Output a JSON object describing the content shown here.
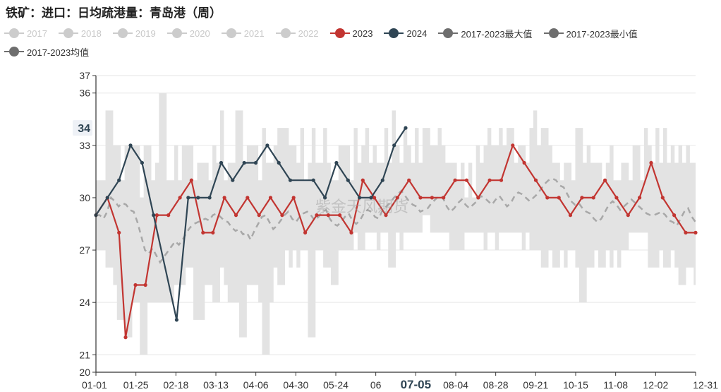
{
  "title": "铁矿：进口：日均疏港量：青岛港（周）",
  "watermark": "紫金天风期货",
  "chart_data": {
    "type": "line",
    "title": "铁矿：进口：日均疏港量：青岛港（周）",
    "xlabel": "",
    "ylabel": "",
    "ylim": [
      20,
      37
    ],
    "x_ticks": [
      "01-01",
      "01-25",
      "02-18",
      "03-13",
      "04-06",
      "04-30",
      "05-24",
      "06",
      "07-05",
      "08-04",
      "08-28",
      "09-21",
      "10-15",
      "11-08",
      "12-02",
      "12-31"
    ],
    "x_highlight": "07-05",
    "y_ticks": [
      20,
      21,
      24,
      27,
      30,
      33,
      36,
      37
    ],
    "y_highlight": "34",
    "grid": true,
    "legend_position": "top",
    "legend": [
      {
        "name": "2017",
        "color": "#cccccc",
        "active": false
      },
      {
        "name": "2018",
        "color": "#cccccc",
        "active": false
      },
      {
        "name": "2019",
        "color": "#cccccc",
        "active": false
      },
      {
        "name": "2020",
        "color": "#cccccc",
        "active": false
      },
      {
        "name": "2021",
        "color": "#cccccc",
        "active": false
      },
      {
        "name": "2022",
        "color": "#cccccc",
        "active": false
      },
      {
        "name": "2023",
        "color": "#c23531",
        "active": true
      },
      {
        "name": "2024",
        "color": "#2f4554",
        "active": true
      },
      {
        "name": "2017-2023最大值",
        "color": "#6e6e6e",
        "active": true
      },
      {
        "name": "2017-2023最小值",
        "color": "#6e6e6e",
        "active": true
      },
      {
        "name": "2017-2023均值",
        "color": "#6e6e6e",
        "active": true
      }
    ],
    "series": [
      {
        "name": "2023",
        "color": "#c23531",
        "x": [
          "01-01",
          "01-08",
          "01-15",
          "01-19",
          "01-25",
          "01-31",
          "02-07",
          "02-14",
          "02-21",
          "02-28",
          "03-07",
          "03-13",
          "03-20",
          "03-27",
          "04-03",
          "04-10",
          "04-17",
          "04-24",
          "05-01",
          "05-08",
          "05-15",
          "05-22",
          "05-29",
          "06-05",
          "06-12",
          "06-19",
          "06-26",
          "07-03",
          "07-10",
          "07-17",
          "07-24",
          "07-31",
          "08-07",
          "08-14",
          "08-21",
          "08-28",
          "09-04",
          "09-11",
          "09-18",
          "09-25",
          "10-02",
          "10-09",
          "10-16",
          "10-23",
          "10-30",
          "11-06",
          "11-13",
          "11-20",
          "11-27",
          "12-04",
          "12-11",
          "12-18",
          "12-25",
          "12-31"
        ],
        "values": [
          29,
          30,
          28,
          22,
          25,
          25,
          29,
          29,
          30,
          31,
          28,
          28,
          30,
          29,
          30,
          29,
          30,
          29,
          30,
          28,
          29,
          29,
          29,
          28,
          31,
          30,
          29,
          30,
          31,
          30,
          30,
          30,
          31,
          31,
          30,
          31,
          31,
          33,
          32,
          31,
          30,
          30,
          29,
          30,
          30,
          31,
          30,
          29,
          30,
          32,
          30,
          29,
          28,
          28
        ]
      },
      {
        "name": "2024",
        "color": "#2f4554",
        "x": [
          "01-01",
          "01-08",
          "01-15",
          "01-22",
          "01-29",
          "02-05",
          "02-19",
          "02-26",
          "03-04",
          "03-11",
          "03-18",
          "03-25",
          "04-01",
          "04-08",
          "04-15",
          "04-22",
          "04-29",
          "05-13",
          "05-20",
          "05-27",
          "06-03",
          "06-10",
          "06-17",
          "06-24",
          "07-01",
          "07-08"
        ],
        "values": [
          29,
          30,
          31,
          33,
          32,
          29,
          23,
          30,
          30,
          30,
          32,
          31,
          32,
          32,
          33,
          32,
          31,
          31,
          30,
          32,
          31,
          30,
          30,
          31,
          33,
          34
        ]
      },
      {
        "name": "2017-2023最大值",
        "color": "#e3e3e3",
        "values": [
          31,
          31,
          31,
          35,
          35,
          33,
          33,
          31,
          33,
          33,
          33,
          33,
          30,
          33,
          33,
          31,
          32,
          36,
          36,
          31,
          31,
          33,
          31,
          33,
          33,
          33,
          31,
          32,
          32,
          32,
          31,
          33,
          32,
          35,
          31,
          32,
          32,
          35,
          35,
          32,
          33,
          33,
          33,
          31,
          34,
          32,
          32,
          33,
          34,
          34,
          34,
          33,
          33,
          32,
          34,
          31,
          32,
          34,
          32,
          32,
          34,
          32,
          31,
          31,
          33,
          33,
          33,
          31,
          34,
          32,
          33,
          34,
          32,
          33,
          32,
          32,
          34,
          32,
          35,
          33,
          32,
          34,
          33,
          32,
          34,
          32,
          34,
          34,
          33,
          33,
          34,
          33,
          32,
          32,
          32,
          31,
          32,
          30,
          32,
          30,
          33,
          32,
          33,
          34,
          33,
          33,
          34,
          33,
          34,
          34,
          32,
          33,
          33,
          32,
          34,
          35,
          33,
          34,
          34,
          33,
          32,
          32,
          31,
          32,
          32,
          31,
          34,
          34,
          32,
          33,
          32,
          32,
          32,
          31,
          32,
          33,
          31,
          31,
          32,
          32,
          31,
          33,
          33,
          31,
          34,
          33,
          32,
          34,
          32,
          34,
          32,
          33,
          32,
          33,
          32,
          33,
          32,
          32
        ]
      },
      {
        "name": "2017-2023最小值",
        "color": "#e3e3e3",
        "values": [
          27,
          27,
          27,
          26,
          26,
          25,
          23,
          23,
          22,
          22,
          24,
          24,
          21,
          21,
          24,
          24,
          24,
          24,
          24,
          24,
          24,
          25,
          25,
          25,
          26,
          26,
          23,
          23,
          23,
          25,
          25,
          24,
          24,
          26,
          25,
          24,
          24,
          24,
          22,
          22,
          25,
          25,
          25,
          24,
          21,
          21,
          24,
          26,
          25,
          25,
          27,
          26,
          27,
          26,
          27,
          27,
          22,
          22,
          27,
          27,
          26,
          26,
          25,
          25,
          27,
          27,
          27,
          27,
          28,
          27,
          27,
          28,
          28,
          28,
          27,
          28,
          28,
          26,
          26,
          28,
          27,
          28,
          28,
          28,
          28,
          28,
          29,
          29,
          28,
          28,
          28,
          28,
          28,
          27,
          27,
          27,
          27,
          28,
          28,
          28,
          28,
          28,
          27,
          28,
          28,
          27,
          28,
          28,
          28,
          28,
          28,
          28,
          27,
          28,
          27,
          27,
          27,
          26,
          26,
          27,
          26,
          26,
          27,
          26,
          27,
          27,
          26,
          24,
          24,
          26,
          26,
          27,
          26,
          26,
          27,
          26,
          27,
          26,
          27,
          27,
          28,
          28,
          28,
          28,
          28,
          26,
          26,
          26,
          27,
          26,
          26,
          27,
          26,
          25,
          25,
          26,
          26,
          25
        ]
      },
      {
        "name": "2017-2023均值",
        "color": "#a8a8a8",
        "values": [
          29,
          29,
          28.8,
          29.2,
          30,
          29.8,
          29.5,
          29.7,
          29.6,
          29.3,
          29.2,
          28.6,
          27.8,
          27,
          26.8,
          27.1,
          26.7,
          26.3,
          26.6,
          26.9,
          27.2,
          27.5,
          27.3,
          27.6,
          28,
          28.3,
          28.5,
          28.6,
          28.7,
          28.8,
          28.7,
          29,
          29.1,
          28.9,
          28.7,
          28.6,
          28.3,
          28.1,
          28.2,
          27.9,
          28,
          27.6,
          28.1,
          28.5,
          28.9,
          29,
          28.6,
          28.2,
          28.4,
          28.7,
          29,
          29.2,
          28.8,
          28.6,
          28.9,
          29.1,
          29.2,
          29,
          28.7,
          28.9,
          29.2,
          29.3,
          28.8,
          28.5,
          28.4,
          28.6,
          28.9,
          29.1,
          28.7,
          28.5,
          28.7,
          29.1,
          29.3,
          29.2,
          28.9,
          28.8,
          29.3,
          29.5,
          29.7,
          30,
          30.2,
          30.4,
          30.1,
          29.8,
          29.6,
          29.5,
          29.2,
          29.3,
          29.4,
          29.7,
          29.9,
          30.1,
          30,
          29.5,
          29.2,
          29.4,
          29.7,
          29.9,
          29.6,
          29.4,
          29.6,
          29.8,
          30.1,
          30,
          29.8,
          29.6,
          29.9,
          30.1,
          29.8,
          29.5,
          29.7,
          30.1,
          30.3,
          30.2,
          30,
          29.8,
          30,
          30.2,
          30.5,
          30.8,
          31,
          31.1,
          31,
          30.7,
          30.6,
          30.2,
          29.8,
          29.6,
          29.7,
          29.4,
          29.2,
          29.1,
          28.8,
          28.6,
          28.8,
          29.2,
          29.6,
          29.8,
          29.6,
          29.3,
          29.5,
          29.7,
          29.9,
          29.7,
          29.5,
          29.3,
          29.1,
          29,
          29,
          29.1,
          29.2,
          29,
          28.7,
          28.6,
          28.4,
          28.8,
          29.2,
          29.4,
          28.9,
          28.6
        ]
      }
    ]
  }
}
